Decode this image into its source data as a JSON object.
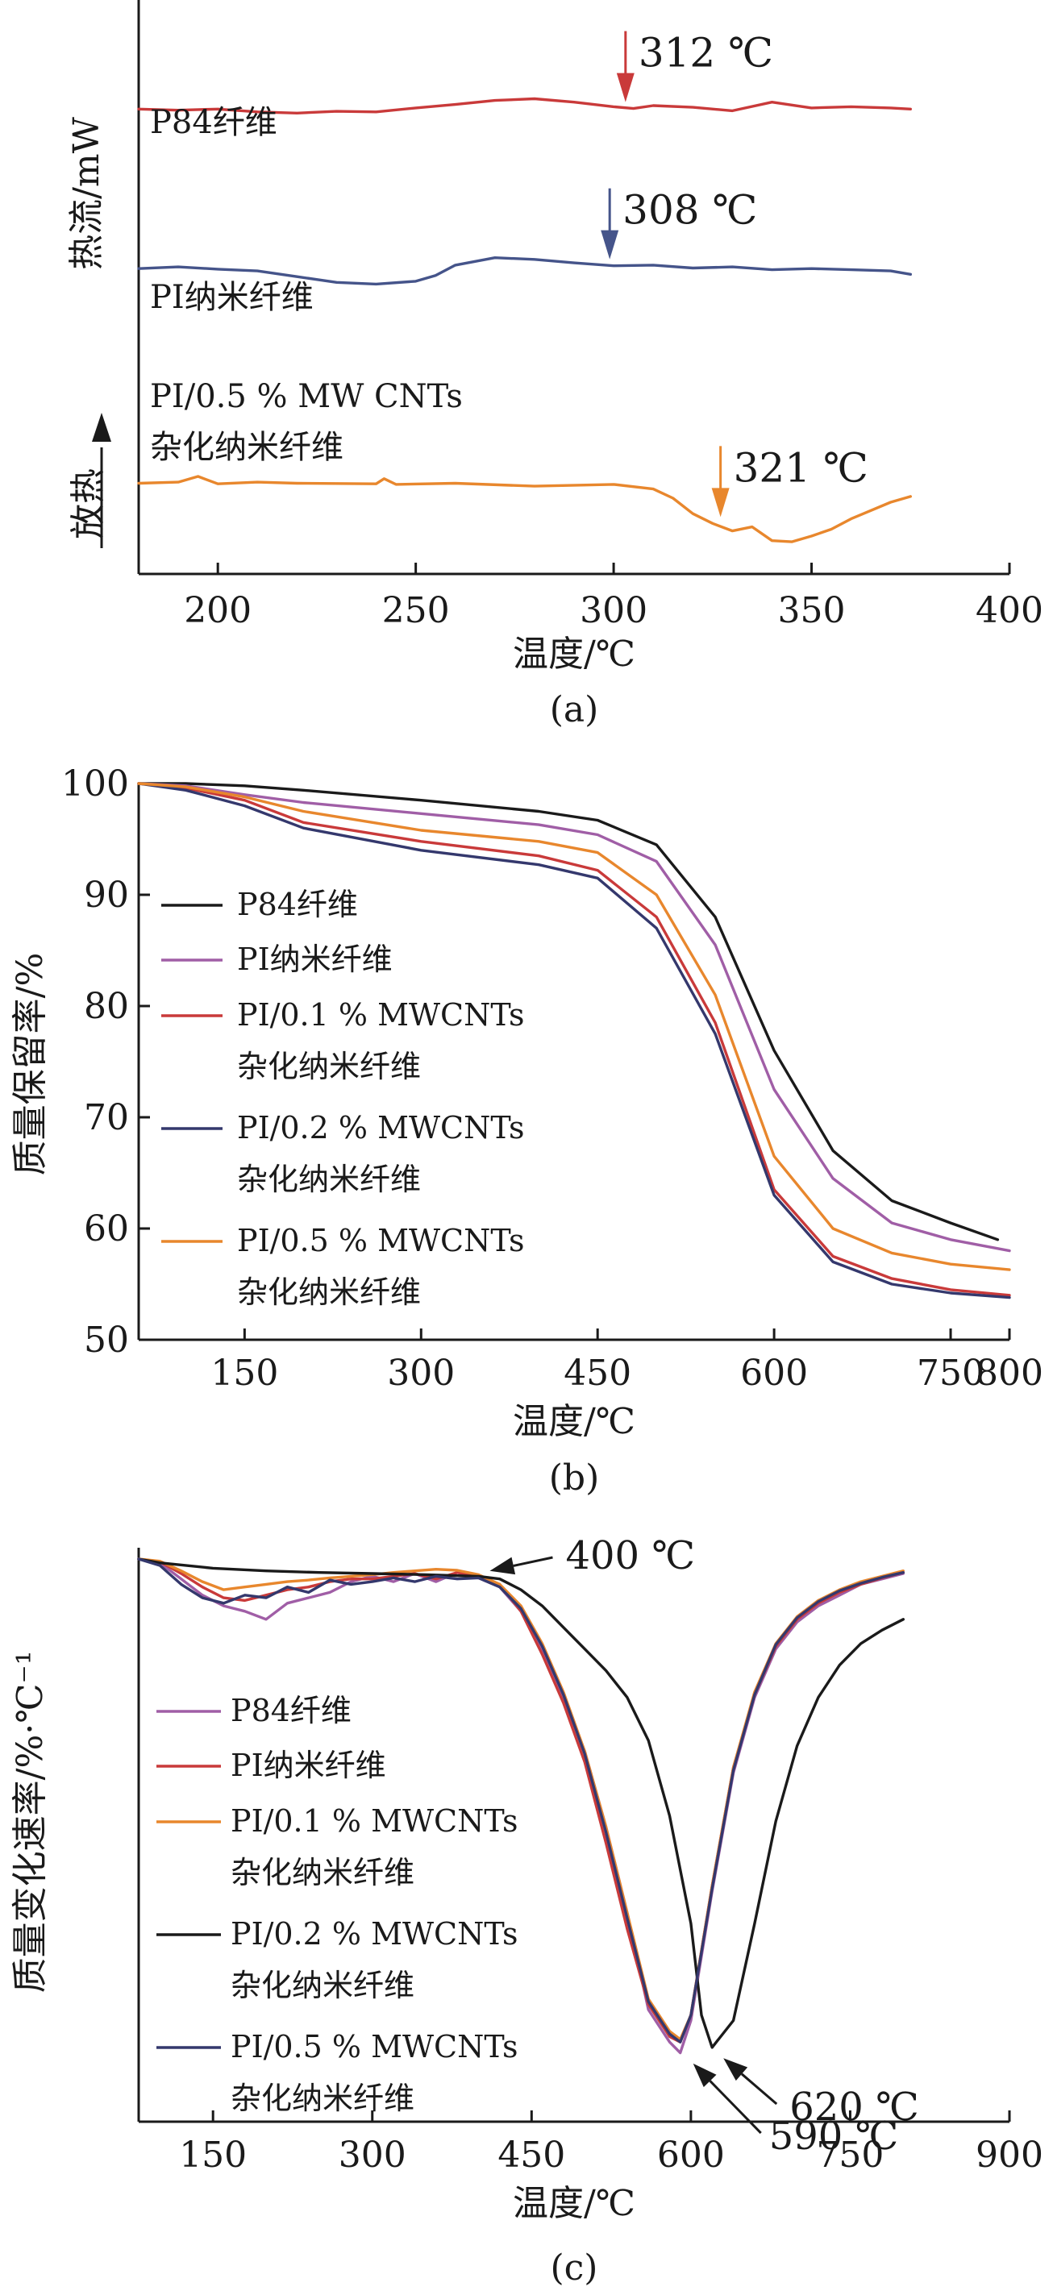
{
  "colors": {
    "axis": "#1a1a1a",
    "red": "#c93a3a",
    "blue": "#45548a",
    "orange": "#e8872d",
    "black": "#1a1a1a",
    "purple": "#a05ea6",
    "navy": "#34386d"
  },
  "chart_data": [
    {
      "panel": "(a)",
      "type": "line",
      "xlabel": "温度/℃",
      "ylabel": "热流/mW",
      "arrow_label": "放热",
      "xlim": [
        180,
        400
      ],
      "xticks": [
        200,
        250,
        300,
        350,
        400
      ],
      "ylim": [
        0,
        1
      ],
      "series": [
        {
          "name": "P84纤维",
          "color": "red",
          "x": [
            180,
            190,
            200,
            210,
            220,
            230,
            240,
            250,
            260,
            270,
            280,
            290,
            300,
            305,
            310,
            320,
            330,
            340,
            350,
            360,
            370,
            375
          ],
          "y": [
            0.81,
            0.808,
            0.81,
            0.805,
            0.803,
            0.806,
            0.805,
            0.812,
            0.818,
            0.825,
            0.828,
            0.822,
            0.814,
            0.811,
            0.816,
            0.813,
            0.807,
            0.822,
            0.812,
            0.814,
            0.812,
            0.81
          ]
        },
        {
          "name": "PI纳米纤维",
          "color": "blue",
          "x": [
            180,
            190,
            200,
            210,
            220,
            230,
            240,
            250,
            255,
            260,
            270,
            280,
            290,
            300,
            310,
            320,
            330,
            340,
            350,
            360,
            370,
            375
          ],
          "y": [
            0.532,
            0.535,
            0.531,
            0.528,
            0.518,
            0.508,
            0.505,
            0.51,
            0.52,
            0.538,
            0.551,
            0.548,
            0.542,
            0.537,
            0.538,
            0.533,
            0.535,
            0.53,
            0.532,
            0.53,
            0.528,
            0.522
          ]
        },
        {
          "name": "PI/0.5 % MW CNTs 杂化纳米纤维",
          "color": "orange",
          "x": [
            180,
            190,
            195,
            200,
            210,
            220,
            240,
            242,
            245,
            260,
            280,
            300,
            310,
            315,
            320,
            325,
            330,
            335,
            340,
            345,
            350,
            355,
            360,
            370,
            375
          ],
          "y": [
            0.158,
            0.16,
            0.17,
            0.157,
            0.16,
            0.158,
            0.157,
            0.166,
            0.156,
            0.158,
            0.153,
            0.156,
            0.148,
            0.132,
            0.105,
            0.088,
            0.075,
            0.082,
            0.058,
            0.056,
            0.066,
            0.078,
            0.096,
            0.125,
            0.135
          ]
        }
      ],
      "annotations": [
        {
          "text": "312 ℃",
          "x": 303,
          "series": "P84纤维",
          "color": "red"
        },
        {
          "text": "308 ℃",
          "x": 299,
          "series": "PI纳米纤维",
          "color": "blue"
        },
        {
          "text": "321 ℃",
          "x": 327,
          "series": "PI/0.5 % MW CNTs 杂化纳米纤维",
          "color": "orange"
        }
      ],
      "caption": "(a)"
    },
    {
      "panel": "(b)",
      "type": "line",
      "xlabel": "温度/℃",
      "ylabel": "质量保留率/%",
      "xlim": [
        60,
        800
      ],
      "ylim": [
        50,
        100
      ],
      "xticks": [
        150,
        300,
        450,
        600,
        750,
        800
      ],
      "yticks": [
        50,
        60,
        70,
        80,
        90,
        100
      ],
      "series": [
        {
          "name": "P84纤维",
          "color": "black",
          "x": [
            60,
            100,
            150,
            200,
            300,
            400,
            450,
            500,
            550,
            600,
            650,
            700,
            750,
            790
          ],
          "y": [
            100,
            100,
            99.8,
            99.4,
            98.5,
            97.5,
            96.7,
            94.5,
            88.0,
            76.0,
            67.0,
            62.5,
            60.5,
            59.0
          ]
        },
        {
          "name": "PI纳米纤维",
          "color": "purple",
          "x": [
            60,
            100,
            150,
            200,
            300,
            400,
            450,
            500,
            550,
            600,
            650,
            700,
            750,
            800
          ],
          "y": [
            100,
            99.8,
            99.0,
            98.3,
            97.3,
            96.3,
            95.4,
            93.0,
            85.5,
            72.5,
            64.5,
            60.5,
            59.0,
            58.0
          ]
        },
        {
          "name": "PI/0.1 % MWCNTs 杂化纳米纤维",
          "color": "red",
          "x": [
            60,
            100,
            150,
            200,
            300,
            400,
            450,
            500,
            550,
            600,
            650,
            700,
            750,
            800
          ],
          "y": [
            100,
            99.6,
            98.5,
            96.5,
            94.8,
            93.5,
            92.2,
            88.0,
            78.5,
            63.5,
            57.5,
            55.5,
            54.5,
            54.0
          ]
        },
        {
          "name": "PI/0.2 % MWCNTs 杂化纳米纤维",
          "color": "navy",
          "x": [
            60,
            100,
            150,
            200,
            300,
            400,
            450,
            500,
            550,
            600,
            650,
            700,
            750,
            800
          ],
          "y": [
            100,
            99.4,
            98.0,
            96.0,
            94.0,
            92.7,
            91.5,
            87.0,
            77.5,
            63.0,
            57.0,
            55.0,
            54.2,
            53.8
          ]
        },
        {
          "name": "PI/0.5 % MWCNTs 杂化纳米纤维",
          "color": "orange",
          "x": [
            60,
            100,
            150,
            200,
            300,
            400,
            450,
            500,
            550,
            600,
            650,
            700,
            750,
            800
          ],
          "y": [
            100,
            99.7,
            98.8,
            97.5,
            95.8,
            94.8,
            93.8,
            90.0,
            81.0,
            66.5,
            60.0,
            57.8,
            56.8,
            56.3
          ]
        }
      ],
      "legend": "left",
      "caption": "(b)"
    },
    {
      "panel": "(c)",
      "type": "line",
      "xlabel": "温度/℃",
      "ylabel": "质量变化速率/%·℃⁻¹",
      "xlim": [
        80,
        900
      ],
      "xticks": [
        150,
        300,
        450,
        600,
        750,
        900
      ],
      "ylim": [
        0,
        1
      ],
      "series": [
        {
          "name": "P84纤维",
          "color": "purple",
          "x": [
            80,
            100,
            120,
            140,
            160,
            180,
            200,
            220,
            240,
            260,
            280,
            300,
            320,
            340,
            360,
            380,
            400,
            420,
            440,
            460,
            480,
            500,
            520,
            540,
            560,
            580,
            590,
            600,
            620,
            640,
            660,
            680,
            700,
            720,
            740,
            760,
            780,
            800
          ],
          "y": [
            0.997,
            0.99,
            0.96,
            0.93,
            0.91,
            0.9,
            0.885,
            0.915,
            0.925,
            0.935,
            0.955,
            0.965,
            0.955,
            0.97,
            0.955,
            0.972,
            0.962,
            0.945,
            0.9,
            0.83,
            0.74,
            0.64,
            0.5,
            0.34,
            0.16,
            0.1,
            0.08,
            0.14,
            0.38,
            0.6,
            0.74,
            0.83,
            0.88,
            0.91,
            0.93,
            0.95,
            0.96,
            0.97
          ]
        },
        {
          "name": "PI纳米纤维",
          "color": "red",
          "x": [
            80,
            100,
            120,
            140,
            160,
            180,
            200,
            220,
            240,
            260,
            280,
            300,
            320,
            340,
            360,
            380,
            400,
            420,
            440,
            460,
            480,
            500,
            520,
            540,
            560,
            580,
            590,
            600,
            620,
            640,
            660,
            680,
            700,
            720,
            740,
            760,
            780,
            800
          ],
          "y": [
            0.997,
            0.992,
            0.97,
            0.945,
            0.925,
            0.92,
            0.93,
            0.94,
            0.945,
            0.955,
            0.96,
            0.96,
            0.965,
            0.97,
            0.96,
            0.972,
            0.965,
            0.95,
            0.9,
            0.82,
            0.73,
            0.62,
            0.47,
            0.31,
            0.17,
            0.11,
            0.1,
            0.15,
            0.39,
            0.61,
            0.745,
            0.835,
            0.885,
            0.915,
            0.935,
            0.95,
            0.962,
            0.972
          ]
        },
        {
          "name": "PI/0.1 % MWCNTs 杂化纳米纤维",
          "color": "orange",
          "x": [
            80,
            100,
            120,
            140,
            160,
            180,
            200,
            220,
            240,
            260,
            280,
            300,
            320,
            340,
            360,
            380,
            400,
            420,
            440,
            460,
            480,
            500,
            520,
            540,
            560,
            580,
            590,
            600,
            620,
            640,
            660,
            680,
            700,
            720,
            740,
            760,
            780,
            800
          ],
          "y": [
            0.997,
            0.993,
            0.975,
            0.955,
            0.94,
            0.945,
            0.95,
            0.955,
            0.958,
            0.962,
            0.965,
            0.968,
            0.972,
            0.975,
            0.978,
            0.976,
            0.968,
            0.95,
            0.91,
            0.84,
            0.75,
            0.64,
            0.5,
            0.34,
            0.18,
            0.12,
            0.105,
            0.15,
            0.39,
            0.61,
            0.75,
            0.84,
            0.89,
            0.92,
            0.94,
            0.955,
            0.965,
            0.975
          ]
        },
        {
          "name": "PI/0.2 % MWCNTs 杂化纳米纤维",
          "color": "black",
          "x": [
            80,
            100,
            150,
            200,
            250,
            300,
            350,
            400,
            420,
            440,
            460,
            480,
            500,
            520,
            540,
            560,
            580,
            600,
            610,
            620,
            640,
            660,
            680,
            700,
            720,
            740,
            760,
            780,
            800
          ],
          "y": [
            0.997,
            0.99,
            0.98,
            0.975,
            0.972,
            0.97,
            0.968,
            0.965,
            0.96,
            0.94,
            0.91,
            0.87,
            0.83,
            0.79,
            0.74,
            0.66,
            0.52,
            0.32,
            0.15,
            0.09,
            0.14,
            0.32,
            0.51,
            0.65,
            0.74,
            0.8,
            0.84,
            0.865,
            0.885
          ]
        },
        {
          "name": "PI/0.5 % MWCNTs 杂化纳米纤维",
          "color": "navy",
          "x": [
            80,
            100,
            120,
            140,
            160,
            180,
            200,
            220,
            240,
            260,
            280,
            300,
            320,
            340,
            360,
            380,
            400,
            420,
            440,
            460,
            480,
            500,
            520,
            540,
            560,
            580,
            590,
            600,
            620,
            640,
            660,
            680,
            700,
            720,
            740,
            760,
            780,
            800
          ],
          "y": [
            0.997,
            0.985,
            0.95,
            0.925,
            0.915,
            0.93,
            0.925,
            0.945,
            0.935,
            0.958,
            0.95,
            0.955,
            0.962,
            0.955,
            0.965,
            0.96,
            0.962,
            0.945,
            0.905,
            0.835,
            0.745,
            0.635,
            0.49,
            0.33,
            0.175,
            0.115,
            0.1,
            0.15,
            0.385,
            0.605,
            0.745,
            0.838,
            0.888,
            0.918,
            0.938,
            0.952,
            0.963,
            0.972
          ]
        }
      ],
      "annotations": [
        {
          "text": "400 ℃",
          "x": 400
        },
        {
          "text": "620 ℃",
          "x": 620
        },
        {
          "text": "590 ℃",
          "x": 590
        }
      ],
      "legend": "left",
      "caption": "(c)"
    }
  ]
}
